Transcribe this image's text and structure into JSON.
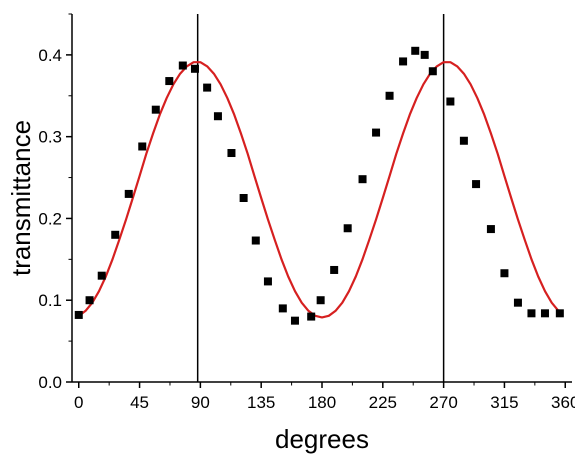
{
  "chart_data": {
    "type": "scatter",
    "title": "",
    "xlabel": "degrees",
    "ylabel": "transmittance",
    "xlim": [
      -5,
      365
    ],
    "ylim": [
      0.0,
      0.45
    ],
    "x_ticks": [
      0,
      45,
      90,
      135,
      180,
      225,
      270,
      315,
      360
    ],
    "x_tick_labels": [
      "0",
      "45",
      "90",
      "135",
      "180",
      "225",
      "270",
      "315",
      "360"
    ],
    "y_ticks": [
      0.0,
      0.1,
      0.2,
      0.3,
      0.4
    ],
    "y_tick_labels": [
      "0.0",
      "0.1",
      "0.2",
      "0.3",
      "0.4"
    ],
    "grid": false,
    "legend": "none",
    "vertical_lines": [
      88,
      270
    ],
    "series": [
      {
        "kind": "points",
        "color": "#000000",
        "marker": "square",
        "x": [
          0,
          8,
          17,
          27,
          37,
          47,
          57,
          67,
          77,
          86,
          95,
          103,
          113,
          122,
          131,
          140,
          151,
          160,
          172,
          179,
          189,
          199,
          210,
          220,
          230,
          240,
          249,
          256,
          262,
          275,
          285,
          294,
          305,
          315,
          325,
          335,
          345,
          356
        ],
        "y": [
          0.082,
          0.1,
          0.13,
          0.18,
          0.23,
          0.288,
          0.333,
          0.368,
          0.387,
          0.383,
          0.36,
          0.325,
          0.28,
          0.225,
          0.173,
          0.123,
          0.09,
          0.075,
          0.08,
          0.1,
          0.137,
          0.188,
          0.248,
          0.305,
          0.35,
          0.392,
          0.405,
          0.4,
          0.38,
          0.343,
          0.295,
          0.242,
          0.187,
          0.133,
          0.097,
          0.084,
          0.084,
          0.084
        ]
      },
      {
        "kind": "fit",
        "color": "#d62020",
        "x": [
          0,
          5,
          10,
          15,
          20,
          25,
          30,
          35,
          40,
          45,
          50,
          55,
          60,
          65,
          70,
          75,
          80,
          85,
          90,
          95,
          100,
          105,
          110,
          115,
          120,
          125,
          130,
          135,
          140,
          145,
          150,
          155,
          160,
          165,
          170,
          175,
          180,
          185,
          190,
          195,
          200,
          205,
          210,
          215,
          220,
          225,
          230,
          235,
          240,
          245,
          250,
          255,
          260,
          265,
          270,
          275,
          280,
          285,
          290,
          295,
          300,
          305,
          310,
          315,
          320,
          325,
          330,
          335,
          340,
          345,
          350,
          355
        ],
        "y": [
          0.081,
          0.087,
          0.097,
          0.111,
          0.129,
          0.15,
          0.174,
          0.199,
          0.225,
          0.252,
          0.279,
          0.304,
          0.327,
          0.347,
          0.364,
          0.377,
          0.386,
          0.391,
          0.391,
          0.386,
          0.377,
          0.364,
          0.347,
          0.327,
          0.304,
          0.279,
          0.252,
          0.225,
          0.199,
          0.174,
          0.15,
          0.129,
          0.111,
          0.097,
          0.087,
          0.081,
          0.079,
          0.081,
          0.087,
          0.097,
          0.111,
          0.129,
          0.15,
          0.174,
          0.199,
          0.225,
          0.252,
          0.279,
          0.304,
          0.327,
          0.347,
          0.364,
          0.377,
          0.386,
          0.391,
          0.391,
          0.386,
          0.377,
          0.364,
          0.347,
          0.327,
          0.304,
          0.279,
          0.252,
          0.225,
          0.199,
          0.174,
          0.15,
          0.129,
          0.111,
          0.097,
          0.087
        ]
      }
    ]
  }
}
